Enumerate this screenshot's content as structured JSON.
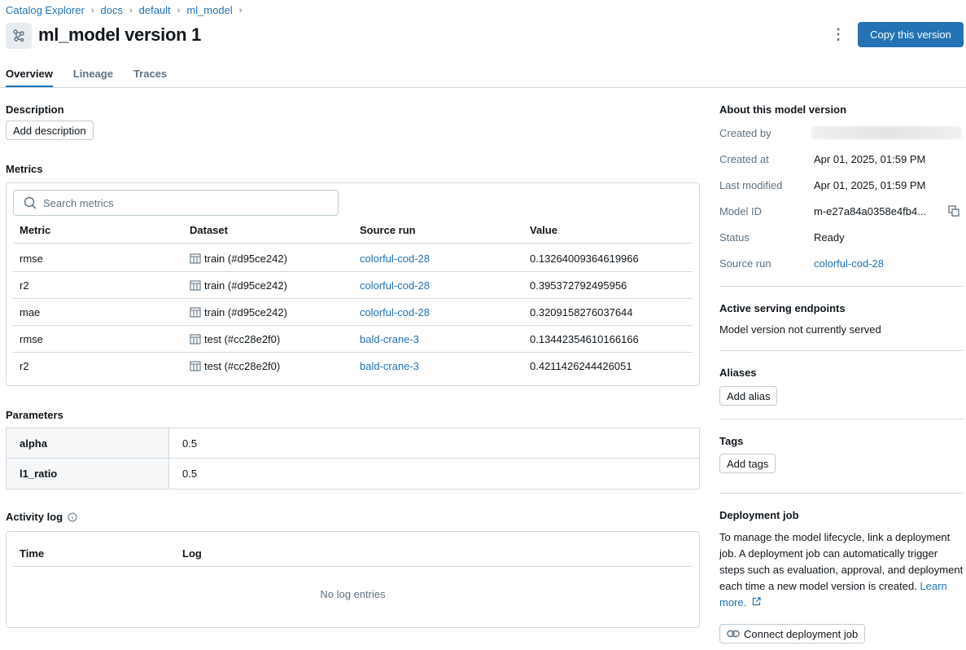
{
  "breadcrumb": [
    "Catalog Explorer",
    "docs",
    "default",
    "ml_model"
  ],
  "header": {
    "title": "ml_model version 1",
    "icon": "model-icon",
    "more_icon": "kebab-icon",
    "copy_button": "Copy this version"
  },
  "tabs": [
    {
      "label": "Overview",
      "active": true
    },
    {
      "label": "Lineage"
    },
    {
      "label": "Traces"
    }
  ],
  "description": {
    "heading": "Description",
    "add_button": "Add description"
  },
  "metrics": {
    "heading": "Metrics",
    "search_placeholder": "Search metrics",
    "columns": [
      "Metric",
      "Dataset",
      "Source run",
      "Value"
    ],
    "rows": [
      {
        "metric": "rmse",
        "dataset": "train (#d95ce242)",
        "run": "colorful-cod-28",
        "value": "0.13264009364619966"
      },
      {
        "metric": "r2",
        "dataset": "train (#d95ce242)",
        "run": "colorful-cod-28",
        "value": "0.395372792495956"
      },
      {
        "metric": "mae",
        "dataset": "train (#d95ce242)",
        "run": "colorful-cod-28",
        "value": "0.3209158276037644"
      },
      {
        "metric": "rmse",
        "dataset": "test (#cc28e2f0)",
        "run": "bald-crane-3",
        "value": "0.13442354610166166"
      },
      {
        "metric": "r2",
        "dataset": "test (#cc28e2f0)",
        "run": "bald-crane-3",
        "value": "0.4211426244426051"
      }
    ]
  },
  "parameters": {
    "heading": "Parameters",
    "rows": [
      {
        "key": "alpha",
        "value": "0.5"
      },
      {
        "key": "l1_ratio",
        "value": "0.5"
      }
    ]
  },
  "activity_log": {
    "heading": "Activity log",
    "columns": [
      "Time",
      "Log"
    ],
    "empty": "No log entries"
  },
  "about": {
    "heading": "About this model version",
    "created_by_label": "Created by",
    "created_at_label": "Created at",
    "created_at": "Apr 01, 2025, 01:59 PM",
    "last_modified_label": "Last modified",
    "last_modified": "Apr 01, 2025, 01:59 PM",
    "model_id_label": "Model ID",
    "model_id": "m-e27a84a0358e4fb4...",
    "status_label": "Status",
    "status": "Ready",
    "source_run_label": "Source run",
    "source_run": "colorful-cod-28"
  },
  "serving": {
    "heading": "Active serving endpoints",
    "text": "Model version not currently served"
  },
  "aliases": {
    "heading": "Aliases",
    "button": "Add alias"
  },
  "tags": {
    "heading": "Tags",
    "button": "Add tags"
  },
  "deployment": {
    "heading": "Deployment job",
    "text": "To manage the model lifecycle, link a deployment job. A deployment job can automatically trigger steps such as evaluation, approval, and deployment each time a new model version is created.",
    "learn_more": "Learn more.",
    "button": "Connect deployment job"
  },
  "colors": {
    "accent": "#2272b4",
    "border": "#d1d9e1",
    "muted": "#5f7281"
  }
}
